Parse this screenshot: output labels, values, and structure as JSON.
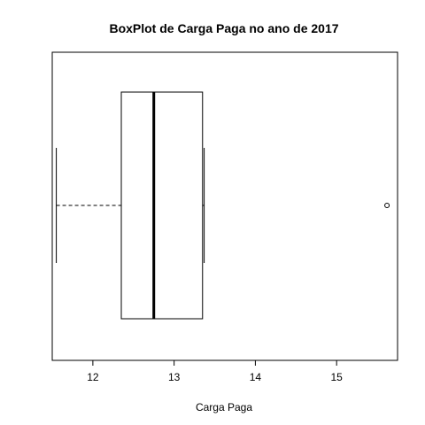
{
  "chart_data": {
    "type": "boxplot",
    "orientation": "horizontal",
    "title": "BoxPlot de Carga Paga no ano de 2017",
    "xlabel": "Carga Paga",
    "ylabel": "",
    "xlim": [
      11.5,
      15.75
    ],
    "xticks": [
      12,
      13,
      14,
      15
    ],
    "xtick_labels": [
      "12",
      "13",
      "14",
      "15"
    ],
    "box": {
      "whisker_low": 11.55,
      "q1": 12.35,
      "median": 12.75,
      "q3": 13.35,
      "whisker_high": 13.37
    },
    "outliers": [
      15.62
    ],
    "grid": false
  }
}
